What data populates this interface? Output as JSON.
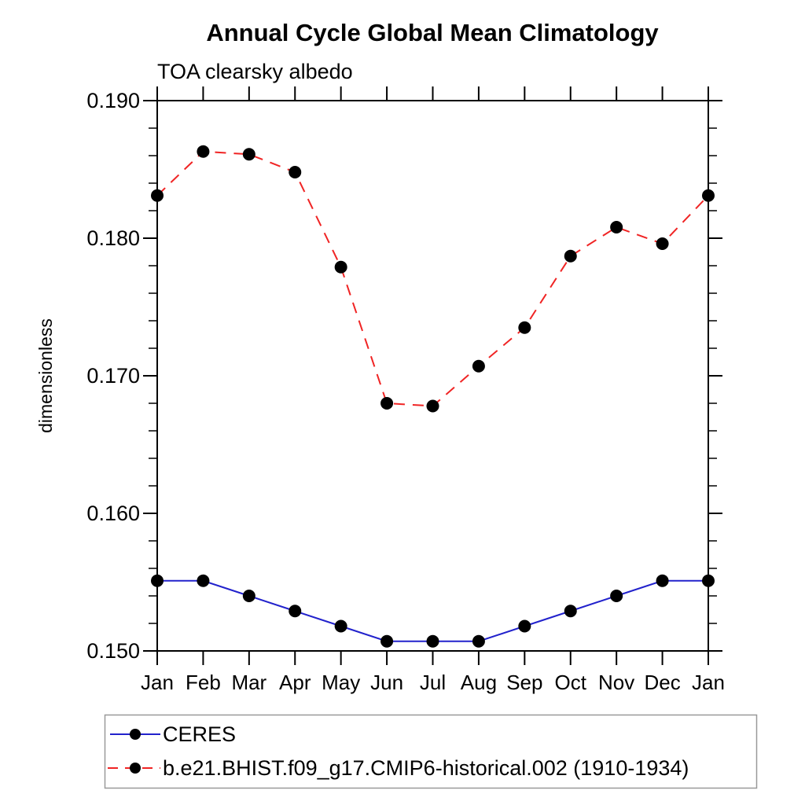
{
  "page": {
    "background": "#ffffff"
  },
  "chart_data": {
    "type": "line",
    "title": "Annual Cycle Global Mean Climatology",
    "subtitle": "TOA clearsky albedo",
    "ylabel": "dimensionless",
    "xlabel": "",
    "categories": [
      "Jan",
      "Feb",
      "Mar",
      "Apr",
      "May",
      "Jun",
      "Jul",
      "Aug",
      "Sep",
      "Oct",
      "Nov",
      "Dec",
      "Jan"
    ],
    "ylim": [
      0.15,
      0.19
    ],
    "ytick_major_interval": 0.01,
    "ytick_minor_interval": 0.002,
    "ytick_labels": [
      "0.150",
      "0.160",
      "0.170",
      "0.180",
      "0.190"
    ],
    "grid": false,
    "tick_style": "outward-all-four-sides",
    "legend_position": "bottom-left-boxed",
    "marker": {
      "shape": "filled-circle",
      "color": "#000000"
    },
    "series": [
      {
        "name": "CERES",
        "line_style": "solid",
        "line_color": "#2222cc",
        "values": [
          0.1551,
          0.1551,
          0.154,
          0.1529,
          0.1518,
          0.1507,
          0.1507,
          0.1507,
          0.1518,
          0.1529,
          0.154,
          0.1551,
          0.1551
        ]
      },
      {
        "name": "b.e21.BHIST.f09_g17.CMIP6-historical.002 (1910-1934)",
        "line_style": "dashed",
        "line_color": "#f02424",
        "values": [
          0.1831,
          0.1863,
          0.1861,
          0.1848,
          0.1779,
          0.168,
          0.1678,
          0.1707,
          0.1735,
          0.1787,
          0.1808,
          0.1796,
          0.1831
        ]
      }
    ]
  }
}
